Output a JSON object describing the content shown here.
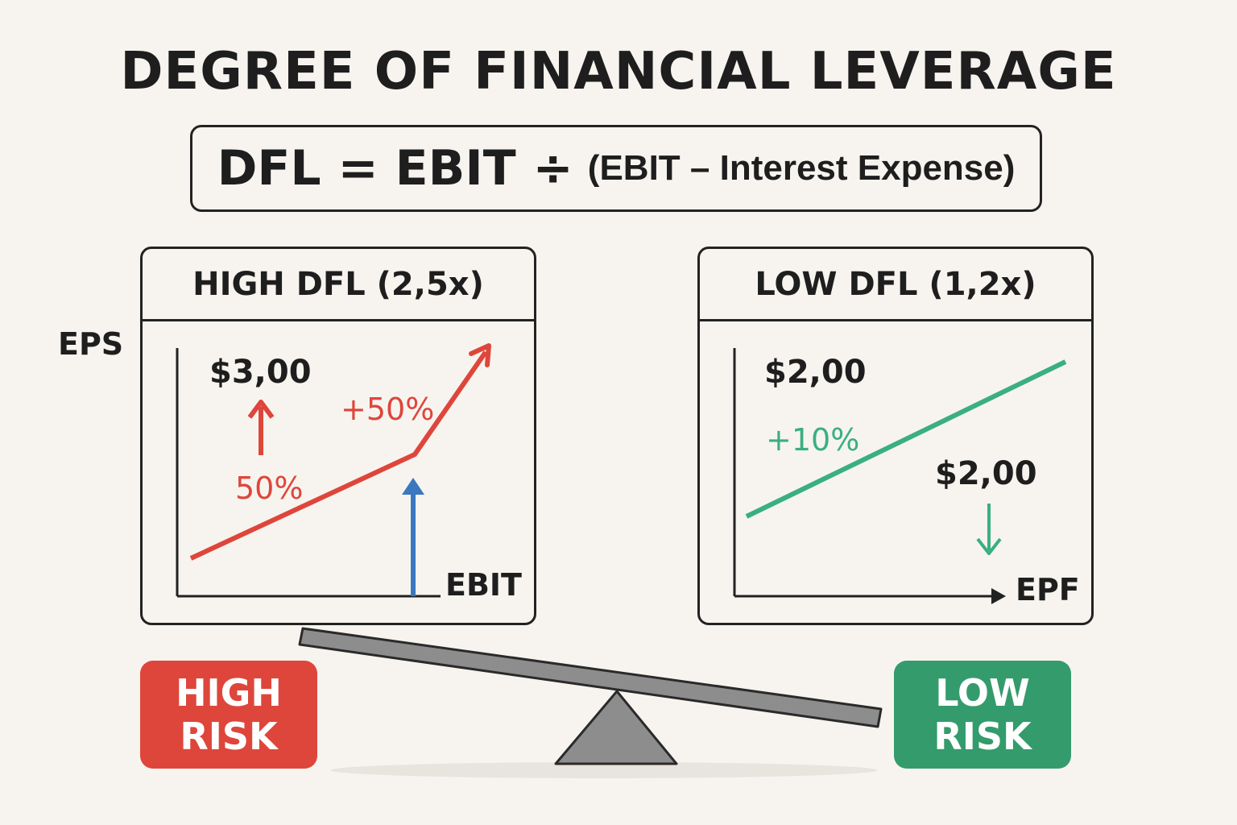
{
  "title": "DEGREE OF FINANCIAL LEVERAGE",
  "formula": {
    "main": "DFL = EBIT ÷",
    "rest": "(EBIT – Interest Expense)"
  },
  "y_axis_label": "EPS",
  "high_panel": {
    "heading": "HIGH DFL (2,5x)",
    "eps_value": "$3,00",
    "change_label": "50%",
    "growth_label": "+50%",
    "x_label": "EBIT",
    "line_color": "#de463b",
    "arrow_color": "#3a78bf"
  },
  "low_panel": {
    "heading": "LOW DFL (1,2x)",
    "eps_value": "$2,00",
    "growth_label": "+10%",
    "eps_value_2": "$2,00",
    "x_label": "EPF",
    "line_color": "#3aaf80"
  },
  "risk": {
    "high_line1": "HIGH",
    "high_line2": "RISK",
    "low_line1": "LOW",
    "low_line2": "RISK",
    "high_color": "#de463b",
    "low_color": "#349b6c"
  }
}
